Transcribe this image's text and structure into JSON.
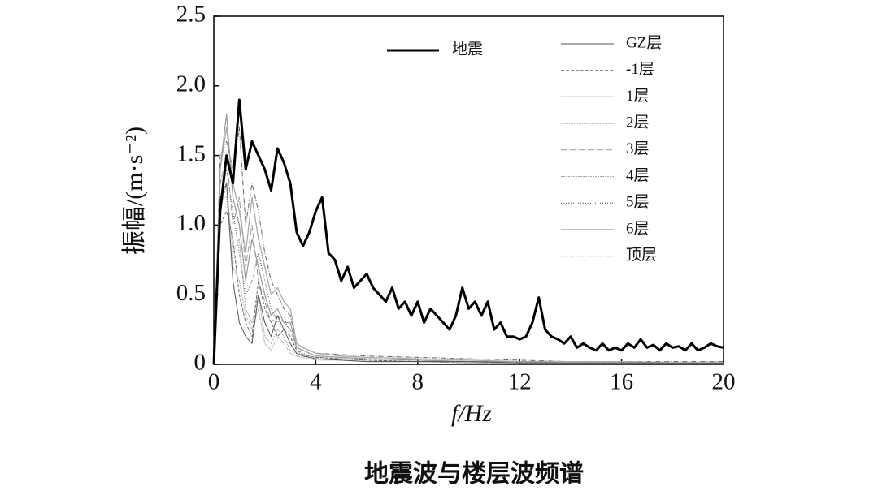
{
  "chart_data": {
    "type": "line",
    "title": "地震波与楼层波频谱",
    "x_label": "f/Hz",
    "y_label": "振幅/(m·s⁻²)",
    "xlim": [
      0,
      20
    ],
    "xticks": [
      0,
      4,
      8,
      12,
      16,
      20
    ],
    "ylim": [
      0,
      2.5
    ],
    "yticks": [
      0,
      0.5,
      {
        "value": 1,
        "label": "1.0"
      },
      1.5,
      {
        "value": 2,
        "label": "2.0"
      },
      2.5
    ],
    "legend": "upper right",
    "x": [
      0,
      0.25,
      0.5,
      0.75,
      1,
      1.25,
      1.5,
      1.75,
      2,
      2.25,
      2.5,
      2.75,
      3,
      3.25,
      3.5,
      3.75,
      4,
      5,
      6,
      8,
      10,
      12,
      14,
      16,
      18,
      20
    ],
    "series": [
      {
        "name": "地震",
        "color": "#000000",
        "width": 3,
        "dash": "none",
        "x": [
          0,
          0.25,
          0.5,
          0.75,
          1,
          1.25,
          1.5,
          1.75,
          2,
          2.25,
          2.5,
          2.75,
          3,
          3.25,
          3.5,
          3.75,
          4,
          4.25,
          4.5,
          4.75,
          5,
          5.25,
          5.5,
          5.75,
          6,
          6.25,
          6.5,
          6.75,
          7,
          7.25,
          7.5,
          7.75,
          8,
          8.25,
          8.5,
          8.75,
          9,
          9.25,
          9.5,
          9.75,
          10,
          10.25,
          10.5,
          10.75,
          11,
          11.25,
          11.5,
          11.75,
          12,
          12.25,
          12.5,
          12.75,
          13,
          13.25,
          13.5,
          13.75,
          14,
          14.25,
          14.5,
          14.75,
          15,
          15.25,
          15.5,
          15.75,
          16,
          16.25,
          16.5,
          16.75,
          17,
          17.25,
          17.5,
          17.75,
          18,
          18.25,
          18.5,
          18.75,
          19,
          19.25,
          19.5,
          19.75,
          20
        ],
        "values": [
          0,
          1.1,
          1.5,
          1.3,
          1.9,
          1.4,
          1.6,
          1.5,
          1.4,
          1.25,
          1.55,
          1.45,
          1.3,
          0.95,
          0.85,
          0.95,
          1.1,
          1.2,
          0.8,
          0.75,
          0.6,
          0.7,
          0.55,
          0.6,
          0.65,
          0.55,
          0.5,
          0.45,
          0.55,
          0.4,
          0.45,
          0.35,
          0.45,
          0.3,
          0.4,
          0.35,
          0.3,
          0.25,
          0.35,
          0.55,
          0.4,
          0.45,
          0.35,
          0.45,
          0.25,
          0.3,
          0.2,
          0.2,
          0.18,
          0.2,
          0.3,
          0.48,
          0.25,
          0.2,
          0.18,
          0.15,
          0.2,
          0.12,
          0.15,
          0.12,
          0.1,
          0.15,
          0.1,
          0.12,
          0.1,
          0.15,
          0.12,
          0.18,
          0.12,
          0.14,
          0.1,
          0.15,
          0.12,
          0.13,
          0.1,
          0.15,
          0.1,
          0.12,
          0.15,
          0.13,
          0.12
        ]
      },
      {
        "name": "GZ层",
        "color": "#555555",
        "width": 1,
        "dash": "none",
        "values": [
          0,
          1.2,
          1.3,
          0.6,
          0.3,
          0.2,
          0.15,
          0.5,
          0.3,
          0.2,
          0.35,
          0.25,
          0.15,
          0.08,
          0.06,
          0.05,
          0.04,
          0.03,
          0.02,
          0.02,
          0.02,
          0.01,
          0.01,
          0.01,
          0.01,
          0.01
        ]
      },
      {
        "name": "-1层",
        "color": "#666666",
        "width": 1,
        "dash": "4 2",
        "values": [
          0,
          1.0,
          1.1,
          0.9,
          0.5,
          0.3,
          0.2,
          0.6,
          0.4,
          0.3,
          0.2,
          0.25,
          0.2,
          0.1,
          0.07,
          0.06,
          0.05,
          0.04,
          0.03,
          0.02,
          0.02,
          0.01,
          0.01,
          0.01,
          0.01,
          0.01
        ]
      },
      {
        "name": "1层",
        "color": "#999999",
        "width": 1.2,
        "dash": "none",
        "values": [
          0,
          1.4,
          1.8,
          1.2,
          1.0,
          0.6,
          0.9,
          0.7,
          0.5,
          0.35,
          0.4,
          0.3,
          0.3,
          0.12,
          0.1,
          0.08,
          0.06,
          0.05,
          0.04,
          0.03,
          0.02,
          0.02,
          0.01,
          0.01,
          0.01,
          0.01
        ]
      },
      {
        "name": "2层",
        "color": "#888888",
        "width": 1,
        "dash": "1 1",
        "values": [
          0,
          1.1,
          1.3,
          0.8,
          0.9,
          0.4,
          0.3,
          0.5,
          0.2,
          0.15,
          0.25,
          0.2,
          0.1,
          0.08,
          0.07,
          0.05,
          0.04,
          0.03,
          0.02,
          0.02,
          0.01,
          0.01,
          0.01,
          0.01,
          0.01,
          0.01
        ]
      },
      {
        "name": "3层",
        "color": "#999999",
        "width": 1,
        "dash": "8 3",
        "values": [
          0,
          1.3,
          1.5,
          1.0,
          1.2,
          0.7,
          1.0,
          0.6,
          0.45,
          0.3,
          0.35,
          0.3,
          0.25,
          0.12,
          0.1,
          0.08,
          0.06,
          0.05,
          0.04,
          0.03,
          0.02,
          0.02,
          0.01,
          0.01,
          0.01,
          0.01
        ]
      },
      {
        "name": "4层",
        "color": "#aaaaaa",
        "width": 1,
        "dash": "2 1",
        "values": [
          0,
          1.2,
          1.2,
          0.7,
          0.6,
          0.35,
          0.25,
          0.4,
          0.15,
          0.1,
          0.2,
          0.15,
          0.08,
          0.06,
          0.05,
          0.04,
          0.03,
          0.03,
          0.02,
          0.02,
          0.01,
          0.01,
          0.01,
          0.01,
          0.01,
          0.01
        ]
      },
      {
        "name": "5层",
        "color": "#444444",
        "width": 1,
        "dash": "1 2",
        "values": [
          0,
          1.3,
          1.4,
          1.1,
          0.8,
          0.5,
          0.6,
          0.8,
          0.6,
          0.4,
          0.3,
          0.35,
          0.2,
          0.1,
          0.08,
          0.06,
          0.05,
          0.04,
          0.03,
          0.02,
          0.02,
          0.01,
          0.01,
          0.01,
          0.01,
          0.01
        ]
      },
      {
        "name": "6层",
        "color": "#aaaaaa",
        "width": 1.3,
        "dash": "none",
        "values": [
          0,
          1.4,
          1.7,
          1.3,
          1.1,
          0.8,
          1.2,
          0.9,
          0.7,
          0.5,
          0.55,
          0.45,
          0.4,
          0.15,
          0.12,
          0.1,
          0.08,
          0.06,
          0.05,
          0.04,
          0.03,
          0.02,
          0.02,
          0.02,
          0.01,
          0.01
        ]
      },
      {
        "name": "顶层",
        "color": "#666666",
        "width": 1,
        "dash": "6 2 1 2",
        "values": [
          0,
          1.5,
          1.6,
          1.4,
          1.7,
          1.0,
          1.3,
          1.1,
          0.8,
          0.6,
          0.5,
          0.4,
          0.35,
          0.15,
          0.12,
          0.1,
          0.08,
          0.07,
          0.06,
          0.05,
          0.04,
          0.03,
          0.02,
          0.02,
          0.02,
          0.02
        ]
      }
    ]
  }
}
